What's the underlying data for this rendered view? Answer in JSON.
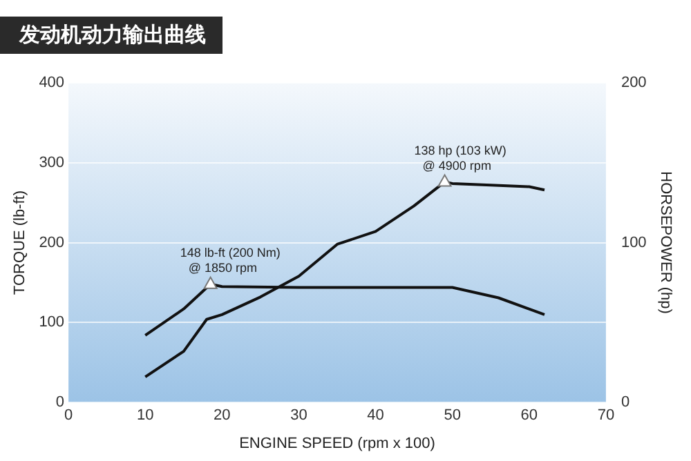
{
  "chart_data": {
    "type": "line",
    "title": "发动机动力输出曲线",
    "xlabel": "ENGINE SPEED (rpm x 100)",
    "ylabel": "TORQUE (lb-ft)",
    "y2label": "HORSEPOWER (hp)",
    "xlim": [
      0,
      70
    ],
    "xticks": [
      0,
      10,
      20,
      30,
      40,
      50,
      60,
      70
    ],
    "ylim": [
      0,
      400
    ],
    "yticks": [
      0,
      100,
      200,
      300,
      400
    ],
    "y2lim": [
      0,
      200
    ],
    "y2ticks": [
      0,
      100,
      200
    ],
    "grid": "y",
    "marker": "none",
    "line_style": "solid",
    "series": [
      {
        "color": "#111111",
        "x": [
          10,
          15,
          18.5,
          20,
          30,
          40,
          50,
          56,
          62
        ],
        "values": [
          84,
          117,
          148,
          145,
          144,
          144,
          144,
          131,
          110
        ]
      },
      {
        "color": "#111111",
        "axis": "y2",
        "x": [
          10,
          15,
          18,
          20,
          25,
          30,
          35,
          40,
          45,
          49,
          50,
          55,
          60,
          62
        ],
        "values": [
          16,
          32,
          52,
          55,
          66,
          79,
          99,
          107,
          123,
          138,
          137,
          136,
          135,
          133
        ]
      }
    ],
    "annotations": [
      {
        "text": "148 lb-ft (200 Nm)\n@ 1850 rpm",
        "x": 18.5,
        "y": 148
      },
      {
        "text": "138 hp (103 kW)\n@ 4900 rpm",
        "x": 49,
        "y": 276
      }
    ]
  }
}
